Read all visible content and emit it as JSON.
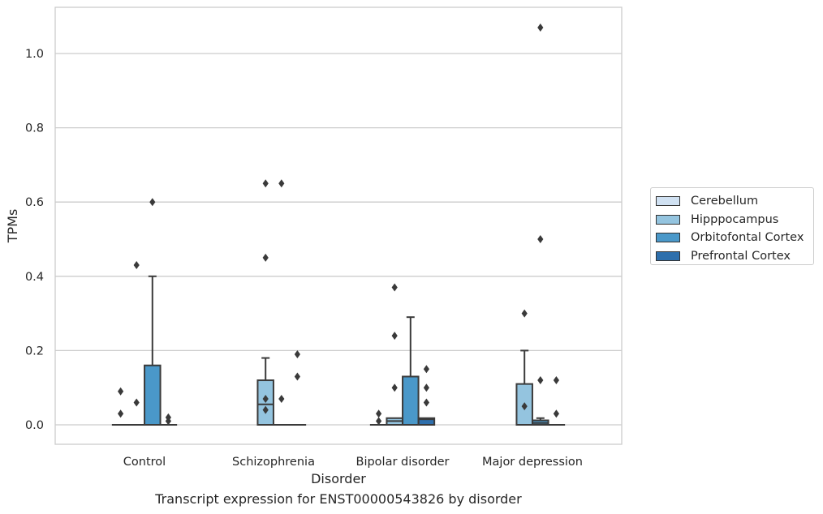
{
  "caption": "Transcript expression for ENST00000543826 by disorder",
  "chart_data": {
    "type": "box",
    "xlabel": "Disorder",
    "ylabel": "TPMs",
    "ylim": [
      -0.05,
      1.13
    ],
    "yticks": [
      "0.0",
      "0.2",
      "0.4",
      "0.6",
      "0.8",
      "1.0"
    ],
    "grid": "horizontal",
    "legend_position": "right",
    "categories": [
      "Control",
      "Schizophrenia",
      "Bipolar disorder",
      "Major depression"
    ],
    "series": [
      {
        "name": "Cerebellum",
        "color": "#d0e1f2",
        "boxes": [
          {
            "q1": 0,
            "median": 0,
            "q3": 0,
            "whislo": 0,
            "whishi": 0,
            "fliers": [
              0.09,
              0.03
            ]
          },
          null,
          {
            "q1": 0,
            "median": 0,
            "q3": 0,
            "whislo": 0,
            "whishi": 0,
            "fliers": [
              0.03,
              0.01
            ]
          },
          null
        ]
      },
      {
        "name": "Hipppocampus",
        "color": "#94c4df",
        "boxes": [
          {
            "q1": 0,
            "median": 0,
            "q3": 0,
            "whislo": 0,
            "whishi": 0,
            "fliers": [
              0.06,
              0.43
            ]
          },
          {
            "q1": 0,
            "median": 0.055,
            "q3": 0.12,
            "whislo": 0,
            "whishi": 0.18,
            "fliers": [
              0.45,
              0.04,
              0.65,
              0.07
            ]
          },
          {
            "q1": 0,
            "median": 0.01,
            "q3": 0.018,
            "whislo": 0,
            "whishi": 0.018,
            "fliers": [
              0.37,
              0.24,
              0.1
            ]
          },
          {
            "q1": 0,
            "median": 0,
            "q3": 0.11,
            "whislo": 0,
            "whishi": 0.2,
            "fliers": [
              0.3,
              0.05
            ]
          }
        ]
      },
      {
        "name": "Orbitofontal Cortex",
        "color": "#4a98c9",
        "boxes": [
          {
            "q1": 0,
            "median": 0,
            "q3": 0.16,
            "whislo": 0,
            "whishi": 0.4,
            "fliers": [
              0.6
            ]
          },
          {
            "q1": 0,
            "median": 0,
            "q3": 0,
            "whislo": 0,
            "whishi": 0,
            "fliers": [
              0.65,
              0.07
            ]
          },
          {
            "q1": 0,
            "median": 0,
            "q3": 0.13,
            "whislo": 0,
            "whishi": 0.29,
            "fliers": []
          },
          {
            "q1": 0,
            "median": 0.005,
            "q3": 0.012,
            "whislo": 0,
            "whishi": 0.018,
            "fliers": [
              1.07,
              0.5,
              0.12
            ]
          }
        ]
      },
      {
        "name": "Prefrontal Cortex",
        "color": "#2e6fac",
        "boxes": [
          {
            "q1": 0,
            "median": 0,
            "q3": 0,
            "whislo": 0,
            "whishi": 0,
            "fliers": [
              0.02,
              0.01
            ]
          },
          {
            "q1": 0,
            "median": 0,
            "q3": 0,
            "whislo": 0,
            "whishi": 0,
            "fliers": [
              0.19,
              0.13
            ]
          },
          {
            "q1": 0,
            "median": 0.015,
            "q3": 0.018,
            "whislo": 0,
            "whishi": 0.018,
            "fliers": [
              0.15,
              0.1,
              0.06
            ]
          },
          {
            "q1": 0,
            "median": 0,
            "q3": 0,
            "whislo": 0,
            "whishi": 0,
            "fliers": [
              0.12,
              0.03
            ]
          }
        ]
      }
    ],
    "outlier_series": [
      [
        null,
        null,
        null,
        null
      ],
      [
        null,
        0,
        null,
        null
      ],
      [
        null,
        null,
        null,
        null
      ],
      [
        null,
        null,
        null,
        null
      ]
    ]
  }
}
